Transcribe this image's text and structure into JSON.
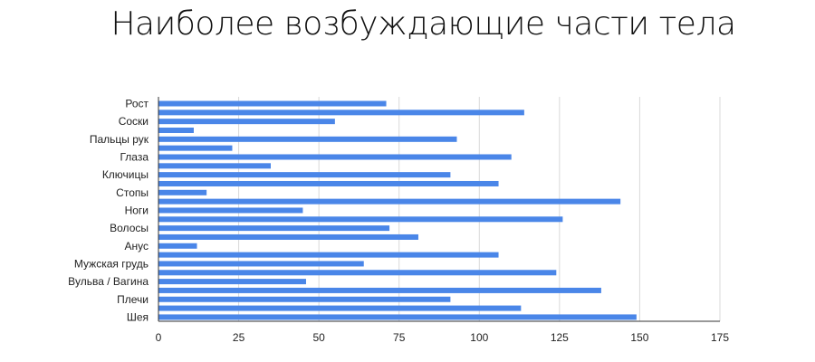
{
  "chart_data": {
    "type": "bar",
    "orientation": "horizontal",
    "title": "Наиболее возбуждающие части тела",
    "xlabel": "",
    "ylabel": "",
    "xlim": [
      0,
      175
    ],
    "x_ticks": [
      0,
      25,
      50,
      75,
      100,
      125,
      150,
      175
    ],
    "grid": true,
    "legend": "none",
    "bar_color": "#4a86e8",
    "bars": [
      {
        "label": "Рост",
        "value": 71
      },
      {
        "label": "",
        "value": 114
      },
      {
        "label": "Соски",
        "value": 55
      },
      {
        "label": "",
        "value": 11
      },
      {
        "label": "Пальцы рук",
        "value": 93
      },
      {
        "label": "",
        "value": 23
      },
      {
        "label": "Глаза",
        "value": 110
      },
      {
        "label": "",
        "value": 35
      },
      {
        "label": "Ключицы",
        "value": 91
      },
      {
        "label": "",
        "value": 106
      },
      {
        "label": "Стопы",
        "value": 15
      },
      {
        "label": "",
        "value": 144
      },
      {
        "label": "Ноги",
        "value": 45
      },
      {
        "label": "",
        "value": 126
      },
      {
        "label": "Волосы",
        "value": 72
      },
      {
        "label": "",
        "value": 81
      },
      {
        "label": "Анус",
        "value": 12
      },
      {
        "label": "",
        "value": 106
      },
      {
        "label": "Мужская грудь",
        "value": 64
      },
      {
        "label": "",
        "value": 124
      },
      {
        "label": "Вульва / Вагина",
        "value": 46
      },
      {
        "label": "",
        "value": 138
      },
      {
        "label": "Плечи",
        "value": 91
      },
      {
        "label": "",
        "value": 113
      },
      {
        "label": "Шея",
        "value": 149
      }
    ]
  }
}
